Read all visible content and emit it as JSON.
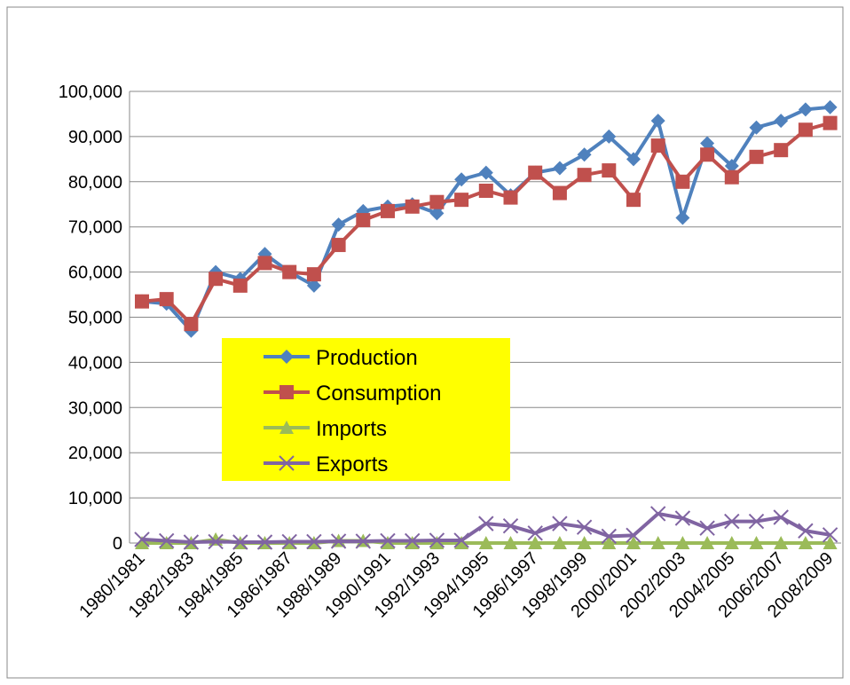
{
  "chart_data": {
    "type": "line",
    "categories": [
      "1980/1981",
      null,
      "1982/1983",
      null,
      "1984/1985",
      null,
      "1986/1987",
      null,
      "1988/1989",
      null,
      "1990/1991",
      null,
      "1992/1993",
      null,
      "1994/1995",
      null,
      "1996/1997",
      null,
      "1998/1999",
      null,
      "2000/2001",
      null,
      "2002/2003",
      null,
      "2004/2005",
      null,
      "2006/2007",
      null,
      "2008/2009"
    ],
    "series": [
      {
        "name": "Production",
        "color": "#4f81bd",
        "marker": "diamond",
        "values": [
          53500,
          53000,
          47000,
          60000,
          58500,
          64000,
          60000,
          57000,
          70500,
          73500,
          74500,
          75000,
          73000,
          80500,
          82000,
          77000,
          82000,
          83000,
          86000,
          90000,
          85000,
          93500,
          72000,
          88500,
          83500,
          92000,
          93500,
          96000,
          96500
        ]
      },
      {
        "name": "Consumption",
        "color": "#c0504d",
        "marker": "square",
        "values": [
          53500,
          54000,
          48500,
          58500,
          57000,
          62000,
          60000,
          59500,
          66000,
          71500,
          73500,
          74500,
          75500,
          76000,
          78000,
          76500,
          82000,
          77500,
          81500,
          82500,
          76000,
          88000,
          80000,
          86000,
          81000,
          85500,
          87000,
          91500,
          93000
        ]
      },
      {
        "name": "Imports",
        "color": "#9bbb59",
        "marker": "triangle",
        "values": [
          0,
          0,
          0,
          800,
          0,
          0,
          0,
          0,
          500,
          500,
          0,
          0,
          0,
          0,
          0,
          0,
          0,
          0,
          0,
          0,
          0,
          0,
          0,
          0,
          0,
          0,
          0,
          0,
          0
        ]
      },
      {
        "name": "Exports",
        "color": "#8064a2",
        "marker": "x",
        "values": [
          800,
          500,
          200,
          300,
          200,
          200,
          300,
          300,
          400,
          400,
          500,
          500,
          600,
          600,
          4300,
          3800,
          2200,
          4300,
          3500,
          1500,
          1700,
          6500,
          5500,
          3300,
          4800,
          4800,
          5700,
          2700,
          1800
        ]
      }
    ],
    "ylim": [
      0,
      100000
    ],
    "yticks": [
      0,
      {
        "value": 10000,
        "label": "10,000"
      },
      {
        "value": 20000,
        "label": "20,000"
      },
      {
        "value": 30000,
        "label": "30,000"
      },
      {
        "value": 40000,
        "label": "40,000"
      },
      {
        "value": 50000,
        "label": "50,000"
      },
      {
        "value": 60000,
        "label": "60,000"
      },
      {
        "value": 70000,
        "label": "70,000"
      },
      {
        "value": 80000,
        "label": "80,000"
      },
      {
        "value": 90000,
        "label": "90,000"
      },
      {
        "value": 100000,
        "label": "100,000"
      }
    ],
    "grid": true,
    "legend_position": "left",
    "legend_color": "#ffff00"
  }
}
